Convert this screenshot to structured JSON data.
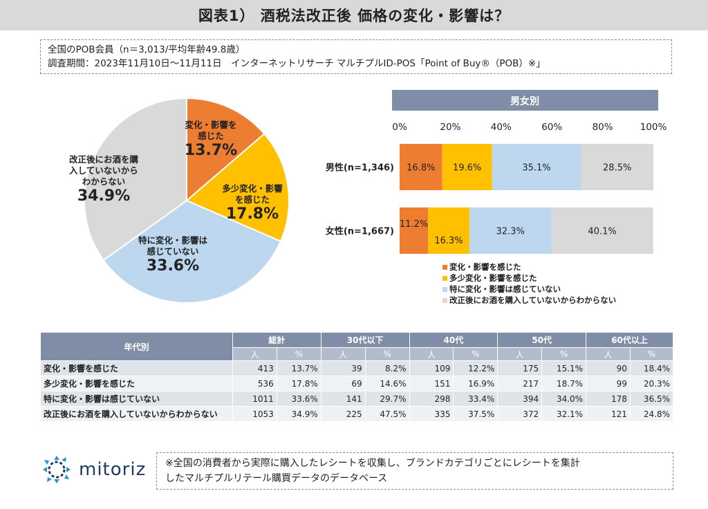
{
  "title": "図表1） 酒税法改正後 価格の変化・影響は？",
  "survey": {
    "line1": "全国のPOB会員（n＝3,013/平均年齢49.8歳）",
    "line2": "調査期間：2023年11月10日〜11月11日　インターネットリサーチ マルチプルID-POS「Point of Buy®（POB）※」"
  },
  "chart_data": [
    {
      "type": "pie",
      "slices": [
        {
          "label": "変化・影響を感じた",
          "value": 13.7,
          "value_label": "13.7%",
          "color": "#ed7d31"
        },
        {
          "label": "多少変化・影響を感じた",
          "value": 17.8,
          "value_label": "17.8%",
          "color": "#ffc000"
        },
        {
          "label": "特に変化・影響は感じていない",
          "value": 33.6,
          "value_label": "33.6%",
          "color": "#bdd7ee"
        },
        {
          "label": "改正後にお酒を購入していないからわからない",
          "value": 34.9,
          "value_label": "34.9%",
          "color": "#d9d9d9"
        }
      ],
      "pie_captions": [
        [
          "変化・影響を",
          "感じた"
        ],
        [
          "多少変化・影響",
          "を感じた"
        ],
        [
          "特に変化・影響は",
          "感じていない"
        ],
        [
          "改正後にお酒を購",
          "入していないから",
          "わからない"
        ]
      ]
    },
    {
      "type": "bar",
      "stacked": true,
      "orientation": "horizontal",
      "title": "男女別",
      "categories": [
        "男性(n=1,346)",
        "女性(n=1,667)"
      ],
      "xlim": [
        0,
        100
      ],
      "ticks": [
        "0%",
        "20%",
        "40%",
        "60%",
        "80%",
        "100%"
      ],
      "series": [
        {
          "name": "変化・影響を感じた",
          "values": [
            16.8,
            11.2
          ],
          "color": "#ed7d31"
        },
        {
          "name": "多少変化・影響を感じた",
          "values": [
            19.6,
            16.3
          ],
          "color": "#ffc000"
        },
        {
          "name": "特に変化・影響は感じていない",
          "values": [
            35.1,
            32.3
          ],
          "color": "#bdd7ee"
        },
        {
          "name": "改正後にお酒を購入していないからわからない",
          "values": [
            28.5,
            40.1
          ],
          "color": "#d9d9d9"
        }
      ],
      "value_labels": [
        [
          "16.8%",
          "19.6%",
          "35.1%",
          "28.5%"
        ],
        [
          "11.2%",
          "16.3%",
          "32.3%",
          "40.1%"
        ]
      ],
      "legend": "bottom-right"
    },
    {
      "type": "table",
      "header": "年代別",
      "groups": [
        "総計",
        "30代以下",
        "40代",
        "50代",
        "60代以上"
      ],
      "subheaders": [
        "人",
        "%"
      ],
      "rows": [
        {
          "label": "変化・影響を感じた",
          "cells": [
            "413",
            "13.7%",
            "39",
            "8.2%",
            "109",
            "12.2%",
            "175",
            "15.1%",
            "90",
            "18.4%"
          ]
        },
        {
          "label": "多少変化・影響を感じた",
          "cells": [
            "536",
            "17.8%",
            "69",
            "14.6%",
            "151",
            "16.9%",
            "217",
            "18.7%",
            "99",
            "20.3%"
          ]
        },
        {
          "label": "特に変化・影響は感じていない",
          "cells": [
            "1011",
            "33.6%",
            "141",
            "29.7%",
            "298",
            "33.4%",
            "394",
            "34.0%",
            "178",
            "36.5%"
          ]
        },
        {
          "label": "改正後にお酒を購入していないからわからない",
          "cells": [
            "1053",
            "34.9%",
            "225",
            "47.5%",
            "335",
            "37.5%",
            "372",
            "32.1%",
            "121",
            "24.8%"
          ]
        }
      ]
    }
  ],
  "footer": {
    "logo_text": "mitoriz",
    "note_line1": "※全国の消費者から実際に購入したレシートを収集し、ブランドカテゴリごとにレシートを集計",
    "note_line2": "したマルチプルリテール購買データのデータベース"
  }
}
